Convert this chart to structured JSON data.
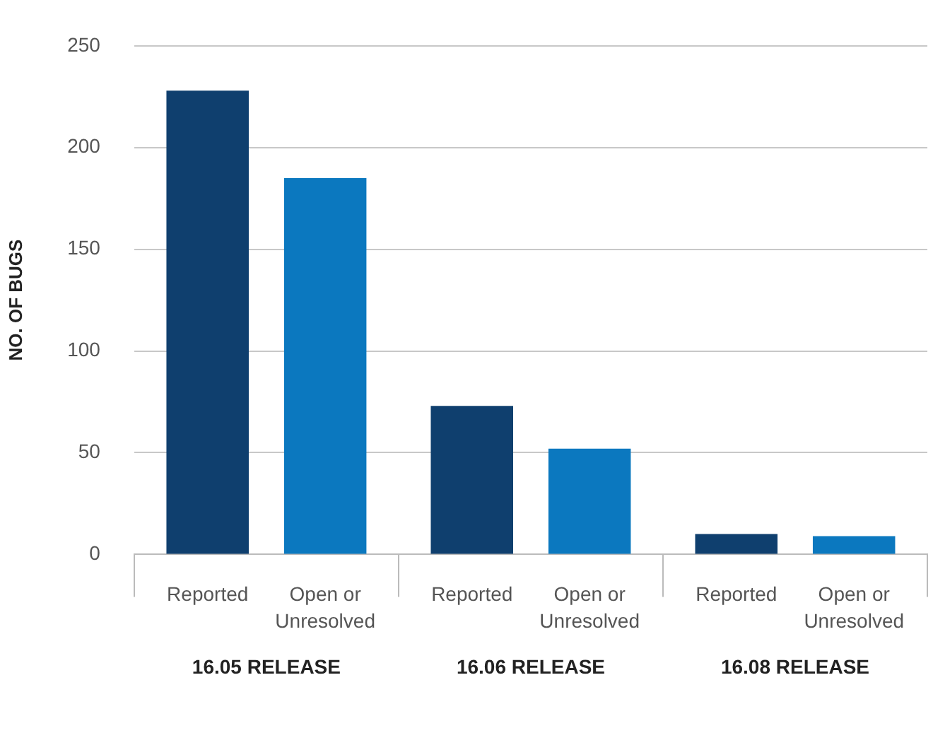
{
  "chart_data": {
    "type": "bar",
    "ylabel": "NO. OF BUGS",
    "categories": [
      "16.05 RELEASE",
      "16.06 RELEASE",
      "16.08 RELEASE"
    ],
    "series": [
      {
        "name": "Reported",
        "color": "#0f3f6e",
        "values": [
          228,
          73,
          10
        ]
      },
      {
        "name": "Open or Unresolved",
        "color": "#0b78bf",
        "values": [
          185,
          52,
          9
        ]
      }
    ],
    "ylim": [
      0,
      250
    ],
    "yticks": [
      0,
      50,
      100,
      150,
      200,
      250
    ],
    "grid": "y",
    "legend": false
  }
}
